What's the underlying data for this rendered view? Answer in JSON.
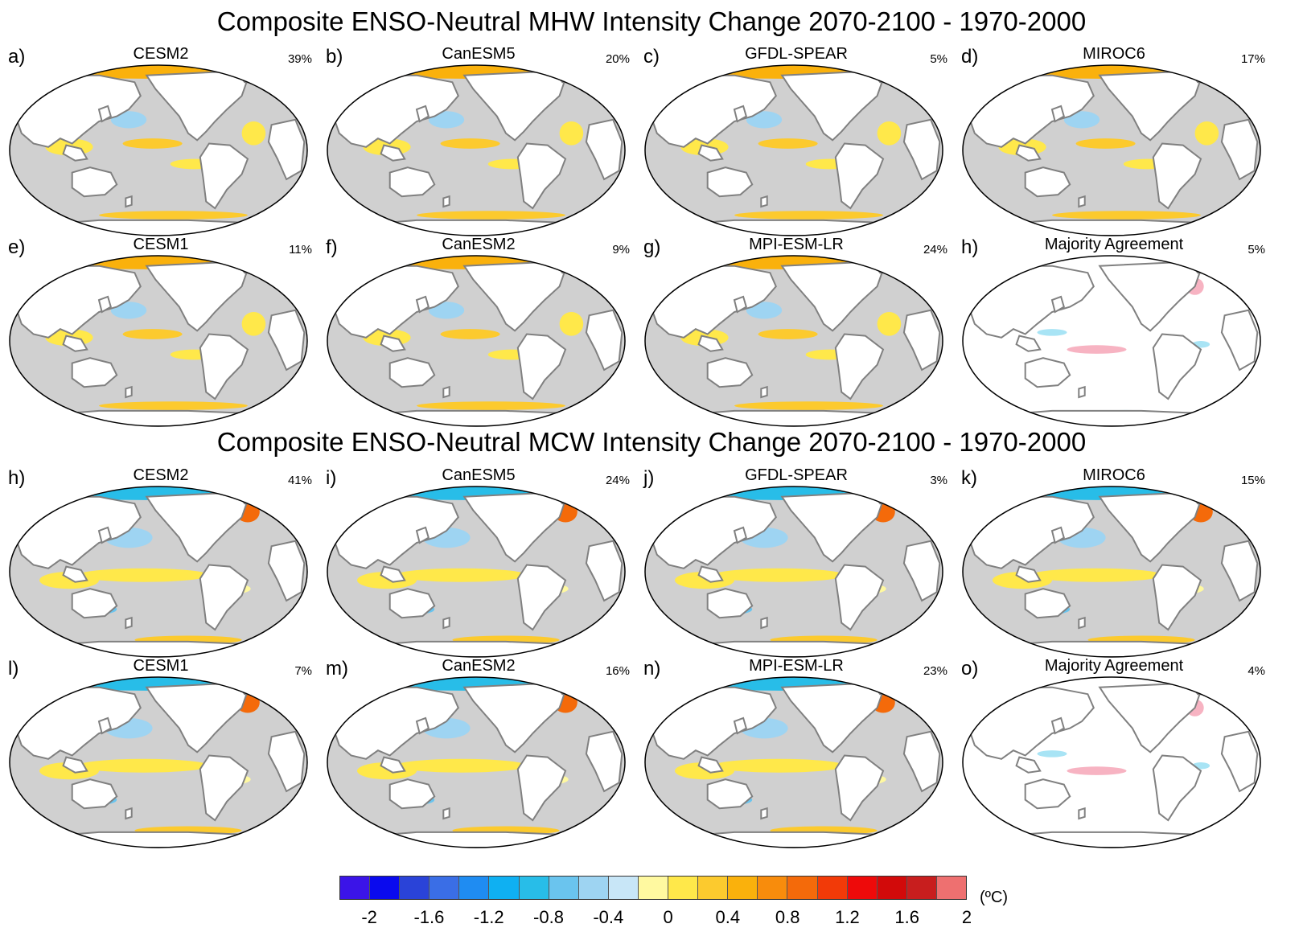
{
  "titles": {
    "mhw": "Composite ENSO-Neutral MHW Intensity Change 2070-2100 - 1970-2000",
    "mcw": "Composite ENSO-Neutral MCW Intensity Change 2070-2100 - 1970-2000"
  },
  "panels": [
    {
      "letter": "a)",
      "model": "CESM2",
      "pct": "39%",
      "style": "model-warm"
    },
    {
      "letter": "b)",
      "model": "CanESM5",
      "pct": "20%",
      "style": "model-warm"
    },
    {
      "letter": "c)",
      "model": "GFDL-SPEAR",
      "pct": "5%",
      "style": "model-warm"
    },
    {
      "letter": "d)",
      "model": "MIROC6",
      "pct": "17%",
      "style": "model-warm"
    },
    {
      "letter": "e)",
      "model": "CESM1",
      "pct": "11%",
      "style": "model-warm"
    },
    {
      "letter": "f)",
      "model": "CanESM2",
      "pct": "9%",
      "style": "model-warm"
    },
    {
      "letter": "g)",
      "model": "MPI-ESM-LR",
      "pct": "24%",
      "style": "model-warm"
    },
    {
      "letter": "h)",
      "model": "Majority Agreement",
      "pct": "5%",
      "style": "agreement"
    },
    {
      "letter": "h)",
      "model": "CESM2",
      "pct": "41%",
      "style": "model-cold"
    },
    {
      "letter": "i)",
      "model": "CanESM5",
      "pct": "24%",
      "style": "model-cold"
    },
    {
      "letter": "j)",
      "model": "GFDL-SPEAR",
      "pct": "3%",
      "style": "model-cold"
    },
    {
      "letter": "k)",
      "model": "MIROC6",
      "pct": "15%",
      "style": "model-cold"
    },
    {
      "letter": "l)",
      "model": "CESM1",
      "pct": "7%",
      "style": "model-cold"
    },
    {
      "letter": "m)",
      "model": "CanESM2",
      "pct": "16%",
      "style": "model-cold"
    },
    {
      "letter": "n)",
      "model": "MPI-ESM-LR",
      "pct": "23%",
      "style": "model-cold"
    },
    {
      "letter": "o)",
      "model": "Majority Agreement",
      "pct": "4%",
      "style": "agreement"
    }
  ],
  "colors": {
    "ocean": "#d0d0d0",
    "land": "#ffffff",
    "coast": "#808080",
    "agree_warm": "#f7b3c2",
    "agree_cold": "#a8e4f5"
  },
  "colorbar": {
    "unit": "(ºC)",
    "ticks": [
      "-2",
      "-1.6",
      "-1.2",
      "-0.8",
      "-0.4",
      "0",
      "0.4",
      "0.8",
      "1.2",
      "1.6",
      "2"
    ],
    "colors": [
      "#3b14e8",
      "#0a0aee",
      "#2a43d8",
      "#3a6ee6",
      "#1f8cf2",
      "#0fb0f2",
      "#28bde8",
      "#6ac4ee",
      "#9ed4f2",
      "#c8e6f7",
      "#fff9a0",
      "#ffe84a",
      "#fcca2e",
      "#fab10c",
      "#f88c0c",
      "#f46a0a",
      "#f23a08",
      "#ee0a0a",
      "#d20a0a",
      "#c81e1e",
      "#ee7070"
    ]
  }
}
